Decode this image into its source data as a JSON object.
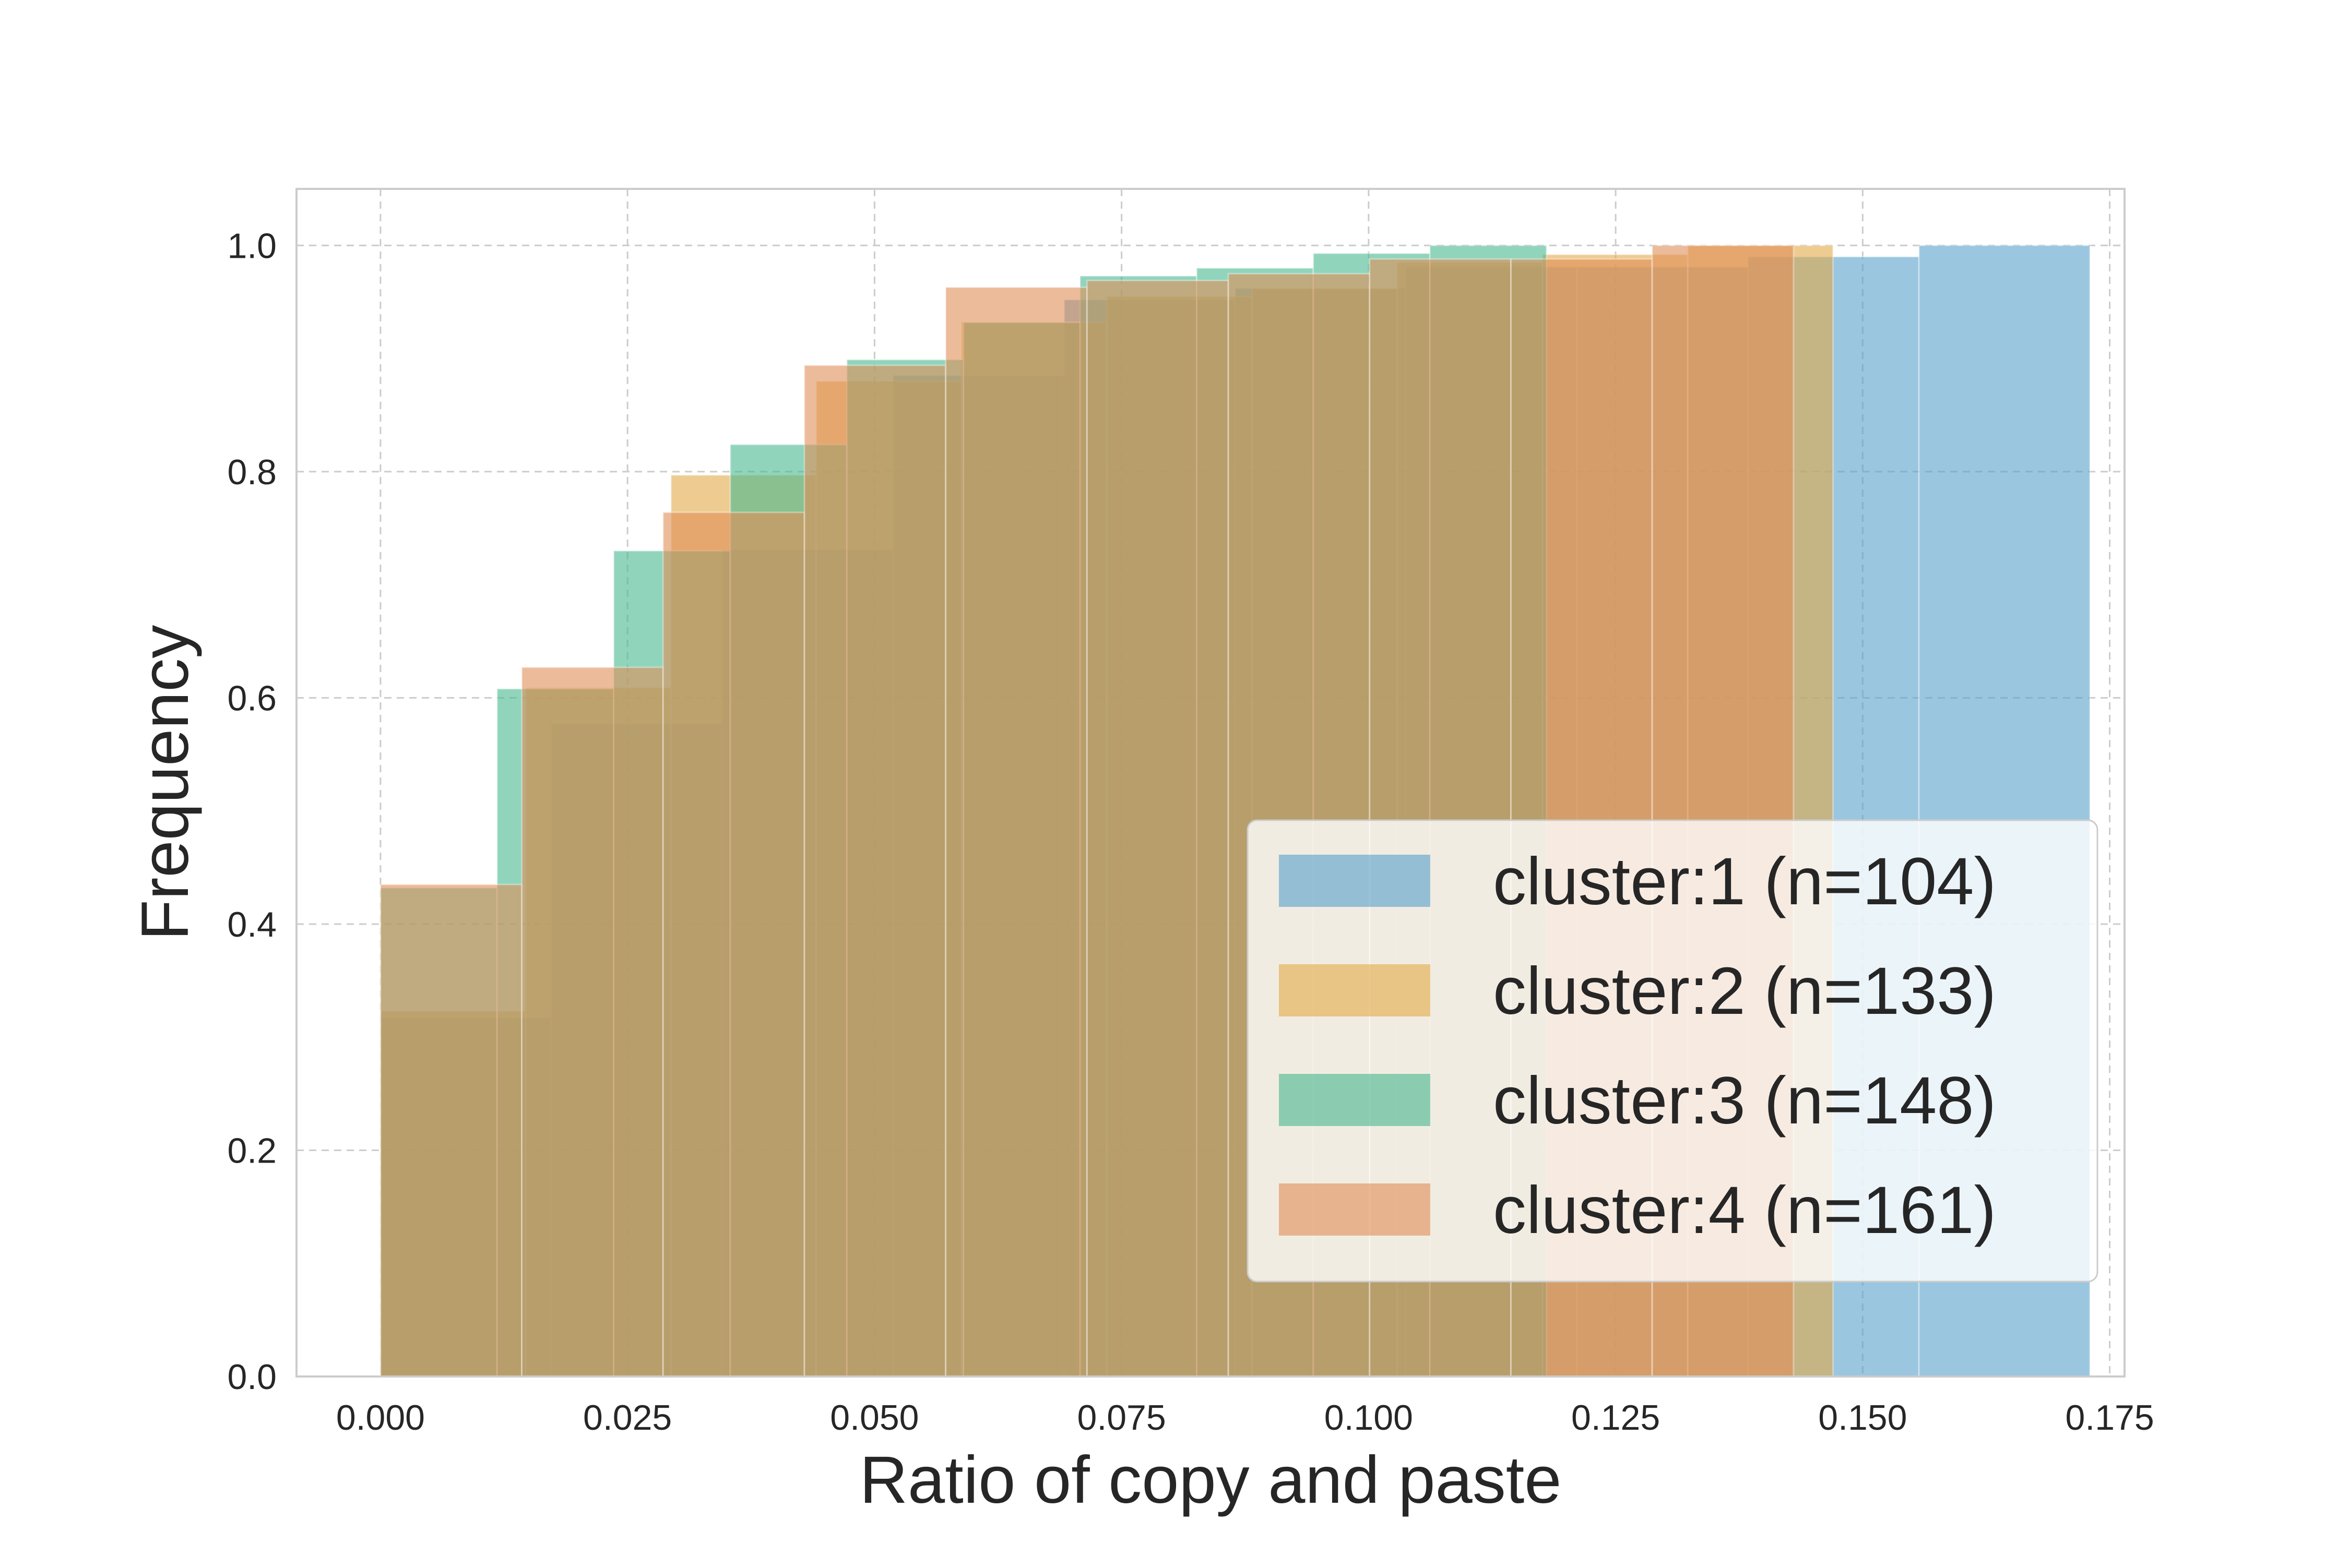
{
  "chart_data": {
    "type": "histogram",
    "cumulative": true,
    "density": true,
    "xlabel": "Ratio of copy and paste",
    "ylabel": "Frequency",
    "xlim": [
      -0.0085,
      0.1765
    ],
    "ylim": [
      0,
      1.05
    ],
    "xticks": [
      0.0,
      0.025,
      0.05,
      0.075,
      0.1,
      0.125,
      0.15,
      0.175
    ],
    "xtick_labels": [
      "0.000",
      "0.025",
      "0.050",
      "0.075",
      "0.100",
      "0.125",
      "0.150",
      "0.175"
    ],
    "yticks": [
      0.0,
      0.2,
      0.4,
      0.6,
      0.8,
      1.0
    ],
    "ytick_labels": [
      "0.0",
      "0.2",
      "0.4",
      "0.6",
      "0.8",
      "1.0"
    ],
    "grid": true,
    "legend_position": "lower-right",
    "series": [
      {
        "name": "cluster:1 (n=104)",
        "color": "#56a0cb",
        "alpha": 0.6,
        "bins": [
          0.0,
          0.0173,
          0.0346,
          0.0519,
          0.0692,
          0.0865,
          0.1038,
          0.1211,
          0.1384,
          0.1557,
          0.173
        ],
        "values": [
          0.317,
          0.577,
          0.731,
          0.885,
          0.952,
          0.962,
          0.981,
          0.981,
          0.99,
          1.0
        ]
      },
      {
        "name": "cluster:2 (n=133)",
        "color": "#e2aa47",
        "alpha": 0.6,
        "bins": [
          0.0,
          0.0147,
          0.0294,
          0.0441,
          0.0588,
          0.0735,
          0.0882,
          0.1029,
          0.1176,
          0.1323,
          0.147
        ],
        "values": [
          0.323,
          0.609,
          0.797,
          0.88,
          0.932,
          0.955,
          0.962,
          0.985,
          0.992,
          1.0
        ]
      },
      {
        "name": "cluster:3 (n=148)",
        "color": "#47b78f",
        "alpha": 0.6,
        "bins": [
          0.0,
          0.0118,
          0.0236,
          0.0354,
          0.0472,
          0.059,
          0.0708,
          0.0826,
          0.0944,
          0.1062,
          0.118
        ],
        "values": [
          0.432,
          0.608,
          0.73,
          0.824,
          0.899,
          0.932,
          0.973,
          0.98,
          0.993,
          1.0
        ]
      },
      {
        "name": "cluster:4 (n=161)",
        "color": "#e08d56",
        "alpha": 0.6,
        "bins": [
          0.0,
          0.0143,
          0.0286,
          0.0429,
          0.0572,
          0.0715,
          0.0858,
          0.1001,
          0.1144,
          0.1287,
          0.143
        ],
        "values": [
          0.435,
          0.627,
          0.764,
          0.894,
          0.963,
          0.969,
          0.975,
          0.988,
          0.988,
          1.0
        ]
      }
    ]
  }
}
